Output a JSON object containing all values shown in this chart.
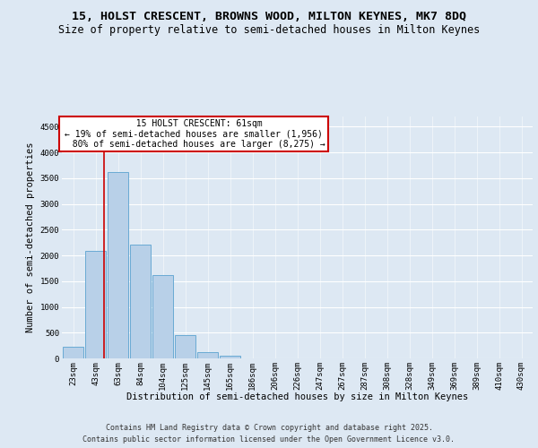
{
  "title_line1": "15, HOLST CRESCENT, BROWNS WOOD, MILTON KEYNES, MK7 8DQ",
  "title_line2": "Size of property relative to semi-detached houses in Milton Keynes",
  "xlabel": "Distribution of semi-detached houses by size in Milton Keynes",
  "ylabel": "Number of semi-detached properties",
  "categories": [
    "23sqm",
    "43sqm",
    "63sqm",
    "84sqm",
    "104sqm",
    "125sqm",
    "145sqm",
    "165sqm",
    "186sqm",
    "206sqm",
    "226sqm",
    "247sqm",
    "267sqm",
    "287sqm",
    "308sqm",
    "328sqm",
    "349sqm",
    "369sqm",
    "389sqm",
    "410sqm",
    "430sqm"
  ],
  "values": [
    230,
    2090,
    3620,
    2210,
    1620,
    460,
    120,
    50,
    0,
    0,
    0,
    0,
    0,
    0,
    0,
    0,
    0,
    0,
    0,
    0,
    0
  ],
  "bar_color": "#b8d0e8",
  "bar_edge_color": "#6aaad4",
  "property_sqm": 61,
  "property_label": "15 HOLST CRESCENT: 61sqm",
  "pct_smaller": "19%",
  "pct_larger": "80%",
  "n_smaller": "1,956",
  "n_larger": "8,275",
  "vline_color": "#cc0000",
  "annotation_box_color": "#cc0000",
  "ylim": [
    0,
    4700
  ],
  "yticks": [
    0,
    500,
    1000,
    1500,
    2000,
    2500,
    3000,
    3500,
    4000,
    4500
  ],
  "bg_color": "#dde8f3",
  "plot_bg_color": "#dde8f3",
  "footer_line1": "Contains HM Land Registry data © Crown copyright and database right 2025.",
  "footer_line2": "Contains public sector information licensed under the Open Government Licence v3.0.",
  "title_fontsize": 9.5,
  "subtitle_fontsize": 8.5,
  "axis_label_fontsize": 7.5,
  "tick_fontsize": 6.5,
  "annotation_fontsize": 7,
  "footer_fontsize": 6
}
